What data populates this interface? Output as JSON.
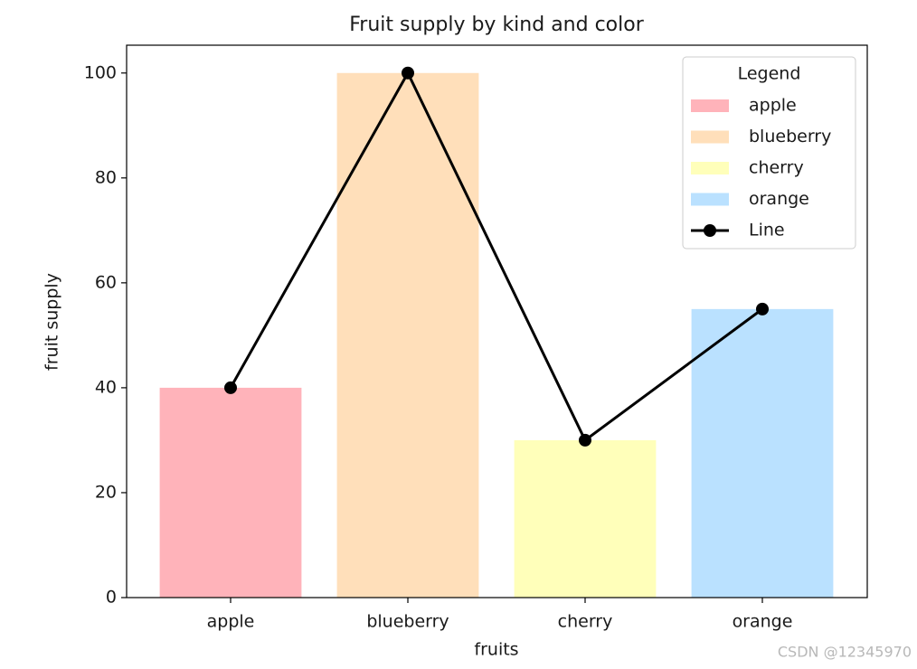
{
  "chart_data": {
    "type": "bar",
    "title": "Fruit supply by kind and color",
    "x_label": "fruits",
    "y_label": "fruit supply",
    "categories": [
      "apple",
      "blueberry",
      "cherry",
      "orange"
    ],
    "values": [
      40,
      100,
      30,
      55
    ],
    "colors": [
      "#ffb3ba",
      "#ffdfba",
      "#ffffba",
      "#bae1ff"
    ],
    "line": {
      "name": "Line",
      "color": "#000000",
      "values": [
        40,
        100,
        30,
        55
      ]
    },
    "ylim": [
      0,
      105.3
    ],
    "yticks": [
      0,
      20,
      40,
      60,
      80,
      100
    ],
    "legend_title": "Legend",
    "legend_position": "upper right"
  },
  "watermark": "CSDN @12345970"
}
